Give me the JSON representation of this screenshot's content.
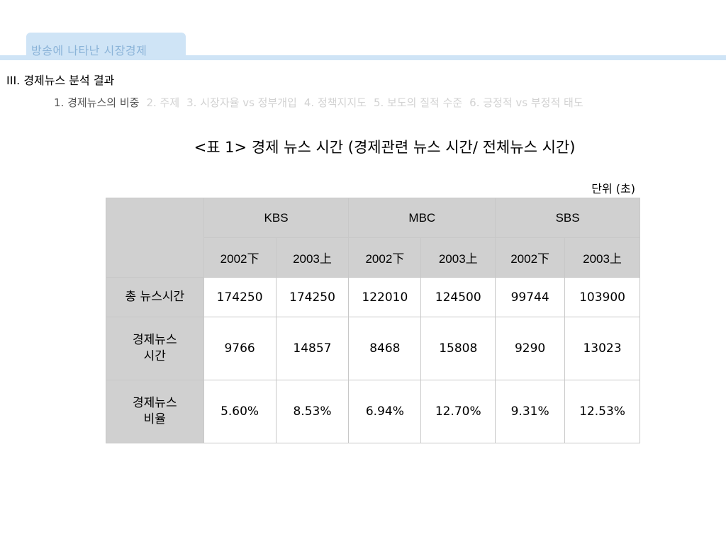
{
  "header": {
    "tab_label": "방송에 나타난 시장경제",
    "section_title": "III. 경제뉴스 분석 결과"
  },
  "subnav": [
    {
      "label": "1. 경제뉴스의 비중",
      "active": true
    },
    {
      "label": "2. 주제",
      "active": false
    },
    {
      "label": "3. 시장자율 vs 정부개입",
      "active": false
    },
    {
      "label": "4. 정책지지도",
      "active": false
    },
    {
      "label": "5. 보도의 질적 수준",
      "active": false
    },
    {
      "label": "6. 긍정적 vs 부정적 태도",
      "active": false
    }
  ],
  "table": {
    "title": "<표 1> 경제 뉴스 시간 (경제관련 뉴스 시간/ 전체뉴스 시간)",
    "unit": "단위 (초)",
    "broadcasters": [
      "KBS",
      "MBC",
      "SBS"
    ],
    "periods": [
      "2002下",
      "2003上",
      "2002下",
      "2003上",
      "2002下",
      "2003上"
    ],
    "rows": [
      {
        "label": "총 뉴스시간",
        "label_lines": [
          "총 뉴스시간"
        ],
        "values": [
          "174250",
          "174250",
          "122010",
          "124500",
          "99744",
          "103900"
        ]
      },
      {
        "label": "경제뉴스 시간",
        "label_lines": [
          "경제뉴스",
          "시간"
        ],
        "values": [
          "9766",
          "14857",
          "8468",
          "15808",
          "9290",
          "13023"
        ]
      },
      {
        "label": "경제뉴스 비율",
        "label_lines": [
          "경제뉴스",
          "비율"
        ],
        "values": [
          "5.60%",
          "8.53%",
          "6.94%",
          "12.70%",
          "9.31%",
          "12.53%"
        ]
      }
    ]
  },
  "colors": {
    "accent_band": "#cfe4f6",
    "tab_text": "#8ab3d8",
    "header_fill": "#d0d0d0",
    "grid_line": "#c8c8c8"
  }
}
